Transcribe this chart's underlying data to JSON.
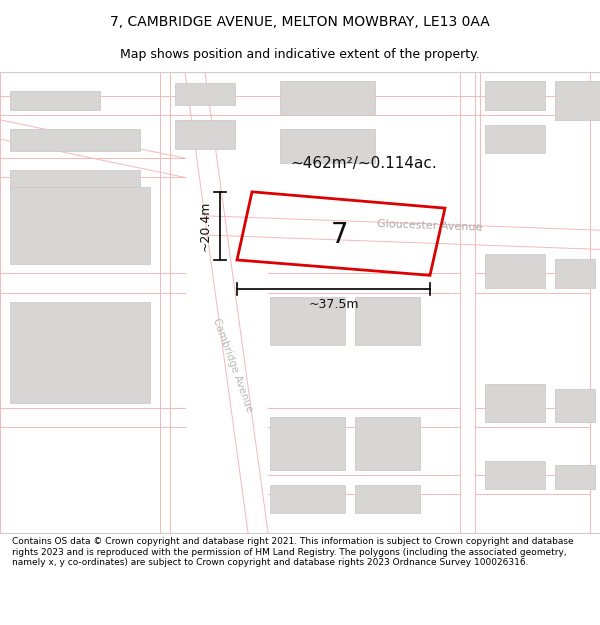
{
  "title_line1": "7, CAMBRIDGE AVENUE, MELTON MOWBRAY, LE13 0AA",
  "title_line2": "Map shows position and indicative extent of the property.",
  "footer_text": "Contains OS data © Crown copyright and database right 2021. This information is subject to Crown copyright and database rights 2023 and is reproduced with the permission of HM Land Registry. The polygons (including the associated geometry, namely x, y co-ordinates) are subject to Crown copyright and database rights 2023 Ordnance Survey 100026316.",
  "map_bg": "#f7f5f5",
  "road_color": "#ffffff",
  "building_color": "#d8d5d5",
  "building_edge": "#c8c4c4",
  "road_line_color": "#f5b8b8",
  "red_outline_color": "#dd0000",
  "area_text": "~462m²/~0.114ac.",
  "label_7": "7",
  "dim_width": "~37.5m",
  "dim_height": "~20.4m",
  "street_gloucester": "Gloucester Avenue",
  "street_cambridge": "Cambridge Avenue",
  "title_fontsize": 10,
  "subtitle_fontsize": 9,
  "footer_fontsize": 6.5
}
